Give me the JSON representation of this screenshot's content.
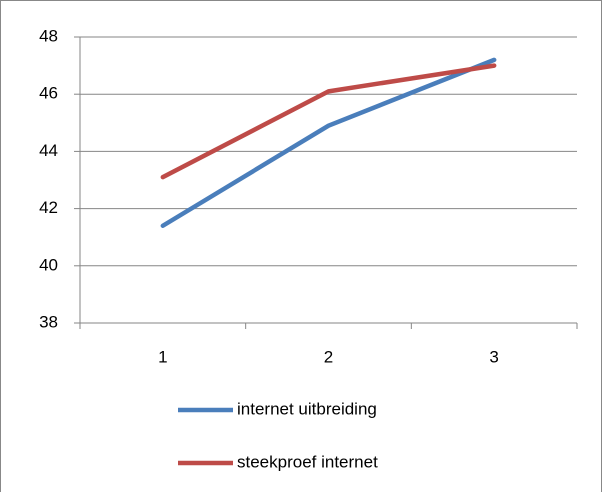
{
  "chart_data": {
    "type": "line",
    "categories": [
      "1",
      "2",
      "3"
    ],
    "series": [
      {
        "name": "internet uitbreiding",
        "color": "#4a7ebb",
        "values": [
          41.4,
          44.9,
          47.2
        ]
      },
      {
        "name": "steekproef internet",
        "color": "#be4b48",
        "values": [
          43.1,
          46.1,
          47.0
        ]
      }
    ],
    "ylim": [
      38,
      48
    ],
    "yticks": [
      38,
      40,
      42,
      44,
      46,
      48
    ],
    "grid": true,
    "legend": "bottom"
  }
}
